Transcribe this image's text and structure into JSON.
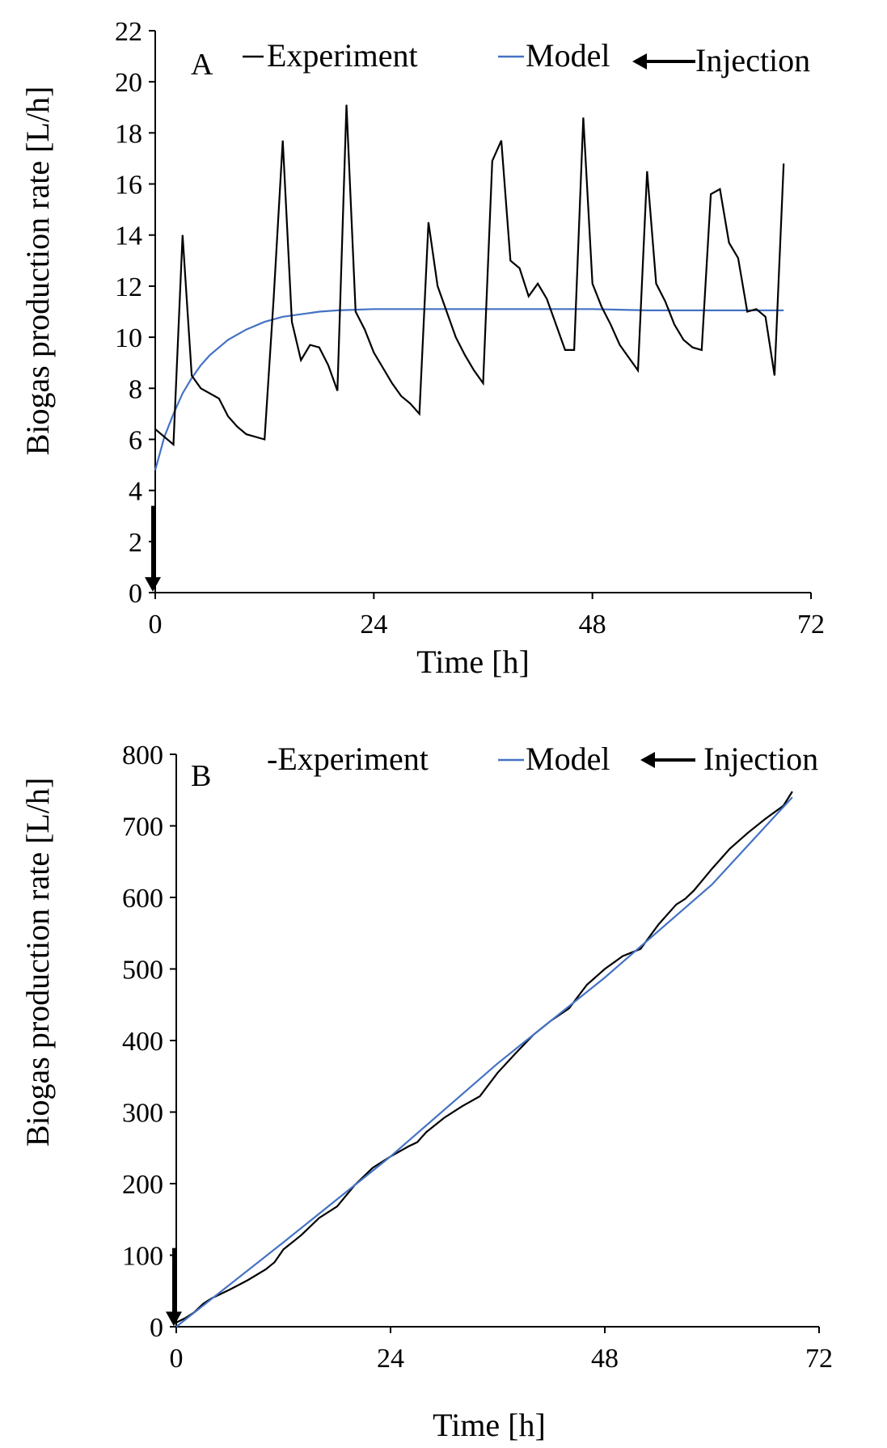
{
  "colors": {
    "experiment": "#000000",
    "model": "#4472C4",
    "axis": "#000000"
  },
  "chart_data": [
    {
      "type": "line",
      "panel_label": "A",
      "xlabel": "Time [h]",
      "ylabel": "Biogas production rate [L/h]",
      "xlim": [
        0,
        72
      ],
      "ylim": [
        0,
        22
      ],
      "x_ticks": [
        0,
        24,
        48,
        72
      ],
      "x_tick_labels": [
        "0",
        "24",
        "48",
        "72"
      ],
      "y_ticks": [
        0,
        2,
        4,
        6,
        8,
        10,
        12,
        14,
        16,
        18,
        20,
        22
      ],
      "y_tick_labels": [
        "0",
        "2",
        "4",
        "6",
        "8",
        "10",
        "12",
        "14",
        "16",
        "18",
        "20",
        "22"
      ],
      "grid": false,
      "legend": {
        "position": "top",
        "experiment_label": "Experiment",
        "model_label": "Model",
        "injection_label": "Injection"
      },
      "injection": {
        "x": 0,
        "y_from": 3.4,
        "y_to": 0.1
      },
      "series": [
        {
          "name": "Experiment",
          "x": [
            0,
            2,
            3,
            4,
            5,
            7,
            8,
            9,
            10,
            12,
            13,
            14,
            15,
            16,
            17,
            18,
            19,
            20,
            21,
            22,
            23,
            24,
            25,
            26,
            27,
            28,
            29,
            30,
            31,
            33,
            34,
            35,
            36,
            37,
            38,
            39,
            40,
            41,
            42,
            43,
            44,
            45,
            46,
            47,
            48,
            49,
            50,
            51,
            52,
            53,
            54,
            55,
            56,
            57,
            58,
            59,
            60,
            61,
            62,
            63,
            64,
            65,
            66,
            67,
            68,
            69
          ],
          "y": [
            6.4,
            5.8,
            14.0,
            8.5,
            8.0,
            7.6,
            6.9,
            6.5,
            6.2,
            6.0,
            11.5,
            17.7,
            10.6,
            9.1,
            9.7,
            9.6,
            8.9,
            7.9,
            19.1,
            11.0,
            10.3,
            9.4,
            8.8,
            8.2,
            7.7,
            7.4,
            7.0,
            14.5,
            12.0,
            10.0,
            9.3,
            8.7,
            8.2,
            16.9,
            17.7,
            13.0,
            12.7,
            11.6,
            12.1,
            11.5,
            10.5,
            9.5,
            9.5,
            18.6,
            12.1,
            11.2,
            10.5,
            9.7,
            9.2,
            8.7,
            16.5,
            12.1,
            11.4,
            10.5,
            9.9,
            9.6,
            9.5,
            15.6,
            15.8,
            13.7,
            13.1,
            11.0,
            11.1,
            10.8,
            8.5,
            16.8
          ],
          "color": "#000000"
        },
        {
          "name": "Model",
          "x": [
            0,
            1,
            2,
            3,
            4,
            5,
            6,
            8,
            10,
            12,
            14,
            16,
            18,
            20,
            24,
            30,
            36,
            42,
            48,
            54,
            60,
            66,
            69
          ],
          "y": [
            4.8,
            6.1,
            7.0,
            7.8,
            8.4,
            8.9,
            9.3,
            9.9,
            10.3,
            10.6,
            10.8,
            10.9,
            11.0,
            11.05,
            11.1,
            11.1,
            11.1,
            11.1,
            11.1,
            11.05,
            11.05,
            11.05,
            11.05
          ],
          "color": "#4472C4"
        }
      ]
    },
    {
      "type": "line",
      "panel_label": "B",
      "xlabel": "Time [h]",
      "ylabel": "Biogas production rate [L/h]",
      "xlim": [
        0,
        72
      ],
      "ylim": [
        0,
        800
      ],
      "x_ticks": [
        0,
        24,
        48,
        72
      ],
      "x_tick_labels": [
        "0",
        "24",
        "48",
        "72"
      ],
      "y_ticks": [
        0,
        100,
        200,
        300,
        400,
        500,
        600,
        700,
        800
      ],
      "y_tick_labels": [
        "0",
        "100",
        "200",
        "300",
        "400",
        "500",
        "600",
        "700",
        "800"
      ],
      "grid": false,
      "legend": {
        "position": "top",
        "experiment_label": "-Experiment",
        "model_label": "Model",
        "injection_label": "Injection"
      },
      "injection": {
        "x": 0,
        "y_from": 110,
        "y_to": 3
      },
      "series": [
        {
          "name": "Experiment",
          "x": [
            0,
            1,
            2,
            3,
            4,
            6,
            8,
            10,
            11,
            12,
            14,
            16,
            18,
            20,
            22,
            24,
            26,
            27,
            28,
            30,
            32,
            34,
            36,
            38,
            40,
            42,
            44,
            46,
            48,
            50,
            52,
            54,
            56,
            57,
            58,
            60,
            62,
            64,
            66,
            68,
            69
          ],
          "y": [
            6,
            12,
            20,
            32,
            40,
            52,
            65,
            80,
            90,
            108,
            128,
            152,
            168,
            198,
            222,
            238,
            252,
            258,
            272,
            292,
            308,
            322,
            355,
            382,
            408,
            428,
            445,
            478,
            500,
            518,
            528,
            562,
            590,
            598,
            610,
            640,
            668,
            690,
            710,
            728,
            748
          ],
          "color": "#000000"
        },
        {
          "name": "Model",
          "x": [
            0,
            12,
            24,
            36,
            48,
            60,
            69
          ],
          "y": [
            0,
            118,
            238,
            368,
            488,
            618,
            740
          ],
          "color": "#4472C4"
        }
      ]
    }
  ]
}
